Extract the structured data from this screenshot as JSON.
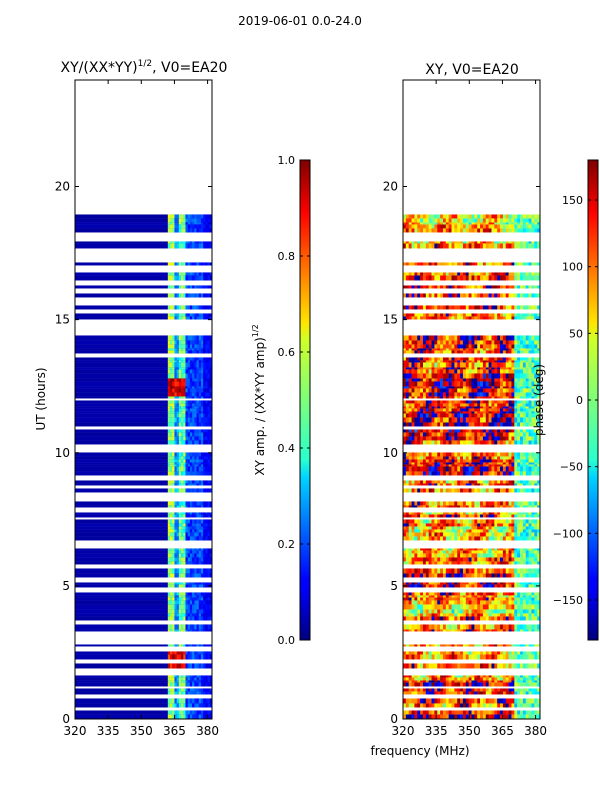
{
  "figure": {
    "suptitle": "2019-06-01 0.0-24.0"
  },
  "chart_data": [
    {
      "type": "heatmap",
      "title": "XY/(XX*YY)",
      "title_exponent": "1/2",
      "title_suffix": ", V0=EA20",
      "xlabel": "",
      "ylabel": "UT (hours)",
      "xlim": [
        320,
        382
      ],
      "ylim": [
        0,
        24
      ],
      "xticks": [
        320,
        335,
        350,
        365,
        380
      ],
      "yticks": [
        0,
        5,
        10,
        15,
        20
      ],
      "data_extent_hours": [
        0,
        19.1
      ],
      "colorbar": {
        "label": "XY amp. / (XX*YY amp)",
        "label_exponent": "1/2",
        "range": [
          0.0,
          1.0
        ],
        "ticks": [
          0.0,
          0.2,
          0.4,
          0.6,
          0.8,
          1.0
        ],
        "tick_labels": [
          "0.0",
          "0.2",
          "0.4",
          "0.6",
          "0.8",
          "1.0"
        ]
      },
      "background_value": 0.03,
      "bright_channels_mhz": [
        [
          362.5,
          365.0
        ],
        [
          367.0,
          370.0
        ]
      ],
      "hot_spots_hours": [
        2.3,
        12.6
      ]
    },
    {
      "type": "heatmap",
      "title": "XY, V0=EA20",
      "xlabel": "frequency (MHz)",
      "ylabel": "",
      "xlim": [
        320,
        382
      ],
      "ylim": [
        0,
        24
      ],
      "xticks": [
        320,
        335,
        350,
        365,
        380
      ],
      "yticks": [
        0,
        5,
        10,
        15,
        20
      ],
      "data_extent_hours": [
        0,
        19.1
      ],
      "colorbar": {
        "label": "phase (deg)",
        "range": [
          -180,
          180
        ],
        "ticks": [
          -150,
          -100,
          -50,
          0,
          50,
          100,
          150
        ],
        "tick_labels": [
          "−150",
          "−100",
          "−50",
          "0",
          "50",
          "100",
          "150"
        ]
      }
    }
  ],
  "colormap": "jet"
}
